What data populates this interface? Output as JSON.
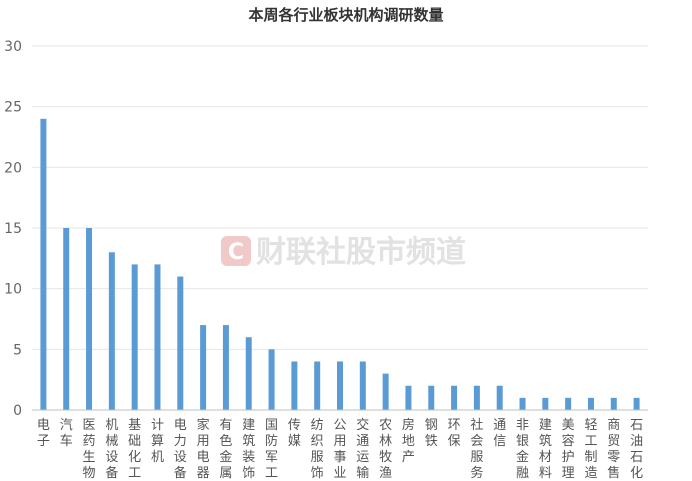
{
  "chart_data": {
    "type": "bar",
    "title": "本周各行业板块机构调研数量",
    "xlabel": "",
    "ylabel": "",
    "ylim": [
      0,
      30
    ],
    "yticks": [
      0,
      5,
      10,
      15,
      20,
      25,
      30
    ],
    "grid": true,
    "legend": "none",
    "categories": [
      "电子",
      "汽车",
      "医药生物",
      "机械设备",
      "基础化工",
      "计算机",
      "电力设备",
      "家用电器",
      "有色金属",
      "建筑装饰",
      "国防军工",
      "传媒",
      "纺织服饰",
      "公用事业",
      "交通运输",
      "农林牧渔",
      "房地产",
      "钢铁",
      "环保",
      "社会服务",
      "通信",
      "非银金融",
      "建筑材料",
      "美容护理",
      "轻工制造",
      "商贸零售",
      "石油石化"
    ],
    "values": [
      24,
      15,
      15,
      13,
      12,
      12,
      11,
      7,
      7,
      6,
      5,
      4,
      4,
      4,
      4,
      3,
      2,
      2,
      2,
      2,
      2,
      1,
      1,
      1,
      1,
      1,
      1
    ],
    "colors": {
      "bar": "#5b9bd5",
      "grid": "#e6e6e6",
      "axis": "#bfbfbf"
    }
  },
  "watermark": {
    "icon": "c-logo-icon",
    "text": "财联社股市频道",
    "color": "#f2c9c9"
  }
}
